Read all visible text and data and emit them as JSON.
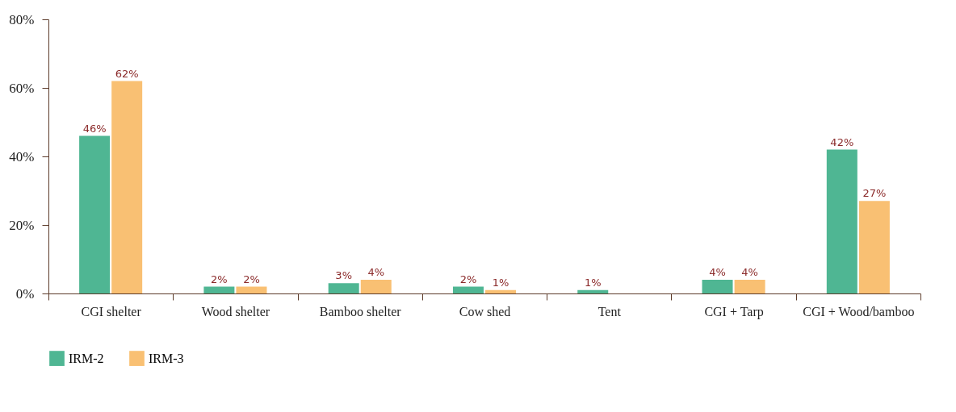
{
  "chart_data": {
    "type": "bar",
    "categories": [
      "CGI shelter",
      "Wood shelter",
      "Bamboo shelter",
      "Cow shed",
      "Tent",
      "CGI + Tarp",
      "CGI + Wood/bamboo"
    ],
    "series": [
      {
        "name": "IRM-2",
        "color": "#4fb693",
        "values": [
          46,
          2,
          3,
          2,
          1,
          4,
          42
        ],
        "value_labels": [
          "46%",
          "2%",
          "3%",
          "2%",
          "1%",
          "4%",
          "42%"
        ]
      },
      {
        "name": "IRM-3",
        "color": "#f9c073",
        "values": [
          62,
          2,
          4,
          1,
          0,
          4,
          27
        ],
        "value_labels": [
          "62%",
          "2%",
          "4%",
          "1%",
          null,
          "4%",
          "27%"
        ]
      }
    ],
    "ylim": [
      0,
      80
    ],
    "yticks": [
      {
        "value": 0,
        "label": "0%"
      },
      {
        "value": 20,
        "label": "20%"
      },
      {
        "value": 40,
        "label": "40%"
      },
      {
        "value": 60,
        "label": "60%"
      },
      {
        "value": 80,
        "label": "80%"
      }
    ],
    "grid": false,
    "legend": "bottom left"
  }
}
